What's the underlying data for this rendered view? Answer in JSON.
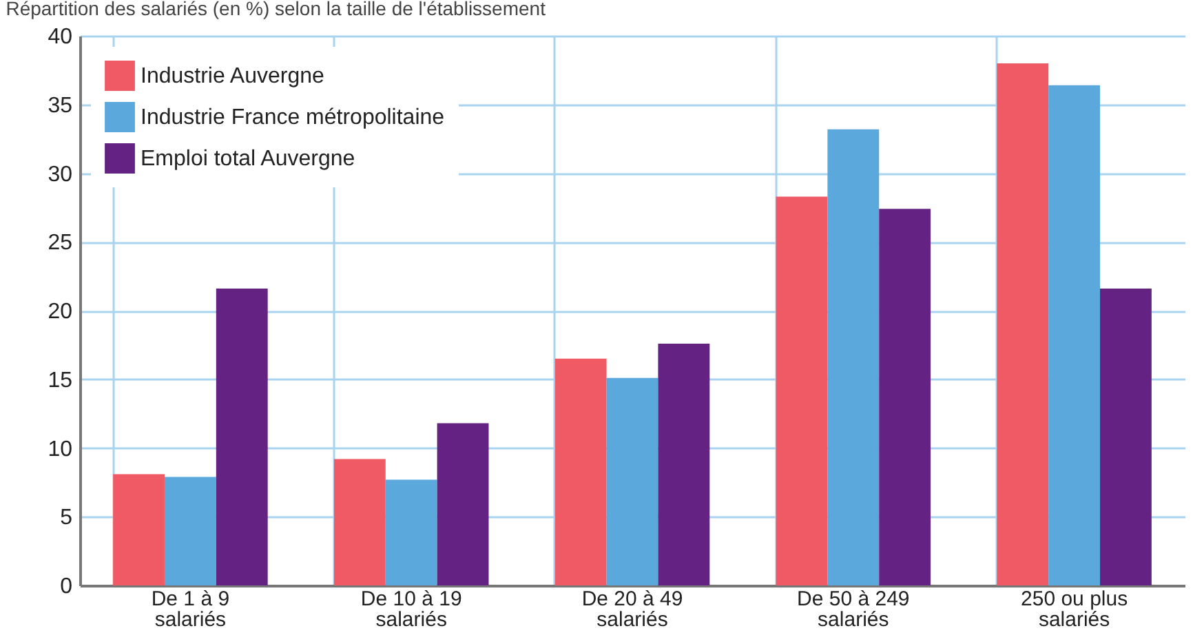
{
  "chart_data": {
    "type": "bar",
    "title": "Répartition des salariés (en %) selon la taille de l'établissement",
    "categories": [
      "De 1 à 9\nsalariés",
      "De 10 à 19\nsalariés",
      "De 20 à 49\nsalariés",
      "De 50 à 249\nsalariés",
      "250 ou plus\nsalariés"
    ],
    "series": [
      {
        "name": "Industrie Auvergne",
        "color": "#f05a64",
        "values": [
          8.1,
          9.2,
          16.5,
          28.3,
          38.0
        ]
      },
      {
        "name": "Industrie France métropolitaine",
        "color": "#5aa8dc",
        "values": [
          7.9,
          7.7,
          15.1,
          33.2,
          36.4
        ]
      },
      {
        "name": "Emploi total Auvergne",
        "color": "#642382",
        "values": [
          21.6,
          11.8,
          17.6,
          27.4,
          21.6
        ]
      }
    ],
    "ylim": [
      0,
      40
    ],
    "yticks": [
      0,
      5,
      10,
      15,
      20,
      25,
      30,
      35,
      40
    ],
    "grid": true,
    "legend": "top left"
  }
}
